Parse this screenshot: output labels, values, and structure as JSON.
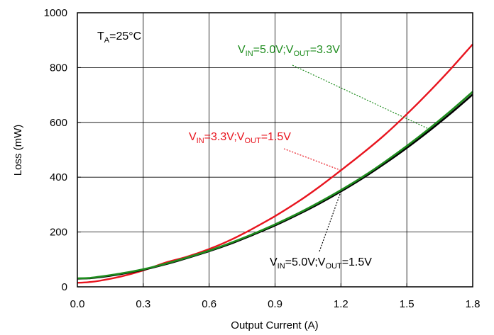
{
  "chart_data": {
    "type": "line",
    "xlabel": "Output Current (A)",
    "ylabel": "Loss (mW)",
    "xlim": [
      0,
      1.8
    ],
    "ylim": [
      0,
      1000
    ],
    "x_ticks": [
      "0.0",
      "0.3",
      "0.6",
      "0.9",
      "1.2",
      "1.5",
      "1.8"
    ],
    "y_ticks": [
      "0",
      "200",
      "400",
      "600",
      "800",
      "1000"
    ],
    "grid": true,
    "annotations": {
      "ta": {
        "main": "T",
        "sub": "A",
        "rest": "=25°C"
      },
      "green": {
        "v1": "V",
        "s1": "IN",
        "m": "=5.0V;V",
        "s2": "OUT",
        "e": "=3.3V",
        "color": "#1e8c1e"
      },
      "red": {
        "v1": "V",
        "s1": "IN",
        "m": "=3.3V;V",
        "s2": "OUT",
        "e": "=1.5V",
        "color": "#e8141e"
      },
      "black": {
        "v1": "V",
        "s1": "IN",
        "m": "=5.0V;V",
        "s2": "OUT",
        "e": "=1.5V",
        "color": "#000000"
      }
    },
    "series": [
      {
        "color": "#e8141e",
        "x": [
          0.0,
          0.05,
          0.1,
          0.2,
          0.3,
          0.4,
          0.5,
          0.6,
          0.7,
          0.8,
          0.9,
          1.0,
          1.1,
          1.2,
          1.3,
          1.4,
          1.5,
          1.6,
          1.7,
          1.8
        ],
        "y": [
          15,
          17,
          22,
          38,
          60,
          88,
          110,
          138,
          172,
          213,
          258,
          308,
          364,
          425,
          488,
          555,
          630,
          710,
          795,
          885
        ]
      },
      {
        "color": "#000000",
        "x": [
          0.0,
          0.05,
          0.1,
          0.2,
          0.3,
          0.4,
          0.5,
          0.6,
          0.7,
          0.8,
          0.9,
          1.0,
          1.1,
          1.2,
          1.3,
          1.4,
          1.5,
          1.6,
          1.7,
          1.8
        ],
        "y": [
          30,
          31,
          35,
          47,
          62,
          82,
          105,
          130,
          158,
          190,
          224,
          262,
          303,
          348,
          397,
          450,
          507,
          568,
          633,
          702
        ]
      },
      {
        "color": "#1e8c1e",
        "x": [
          0.0,
          0.05,
          0.1,
          0.2,
          0.3,
          0.4,
          0.5,
          0.6,
          0.7,
          0.8,
          0.9,
          1.0,
          1.1,
          1.2,
          1.3,
          1.4,
          1.5,
          1.6,
          1.7,
          1.8
        ],
        "y": [
          31,
          32,
          37,
          49,
          64,
          84,
          107,
          132,
          161,
          193,
          228,
          266,
          308,
          353,
          402,
          456,
          514,
          576,
          642,
          712
        ]
      }
    ]
  }
}
